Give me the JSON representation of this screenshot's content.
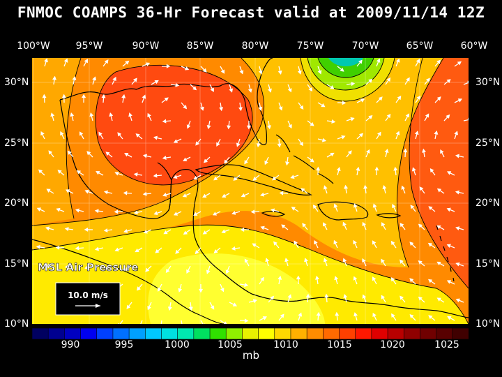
{
  "title": "FNMOC COAMPS 36-Hr Forecast valid at 2009/11/14 12Z",
  "field_label": "MSL Air Pressure",
  "wind_scale_label": "10.0 m/s",
  "units": "mb",
  "longitudes": [
    "100°W",
    "95°W",
    "90°W",
    "85°W",
    "80°W",
    "75°W",
    "70°W",
    "65°W",
    "60°W"
  ],
  "latitudes": [
    "30°N",
    "25°N",
    "20°N",
    "15°N",
    "10°N"
  ],
  "colorbar": {
    "labels": [
      "990",
      "995",
      "1000",
      "1005",
      "1010",
      "1015",
      "1020",
      "1025"
    ],
    "colors": [
      "#000060",
      "#000090",
      "#0000c0",
      "#0000f0",
      "#0040ff",
      "#0070ff",
      "#00a0ff",
      "#00c8ff",
      "#00e0e0",
      "#00e8b0",
      "#00e060",
      "#30e000",
      "#90f000",
      "#e8f000",
      "#ffff00",
      "#ffd800",
      "#ffb000",
      "#ff8c00",
      "#ff6a00",
      "#ff4000",
      "#ff1800",
      "#e00000",
      "#b80000",
      "#900000",
      "#700000",
      "#580000",
      "#400000"
    ]
  }
}
